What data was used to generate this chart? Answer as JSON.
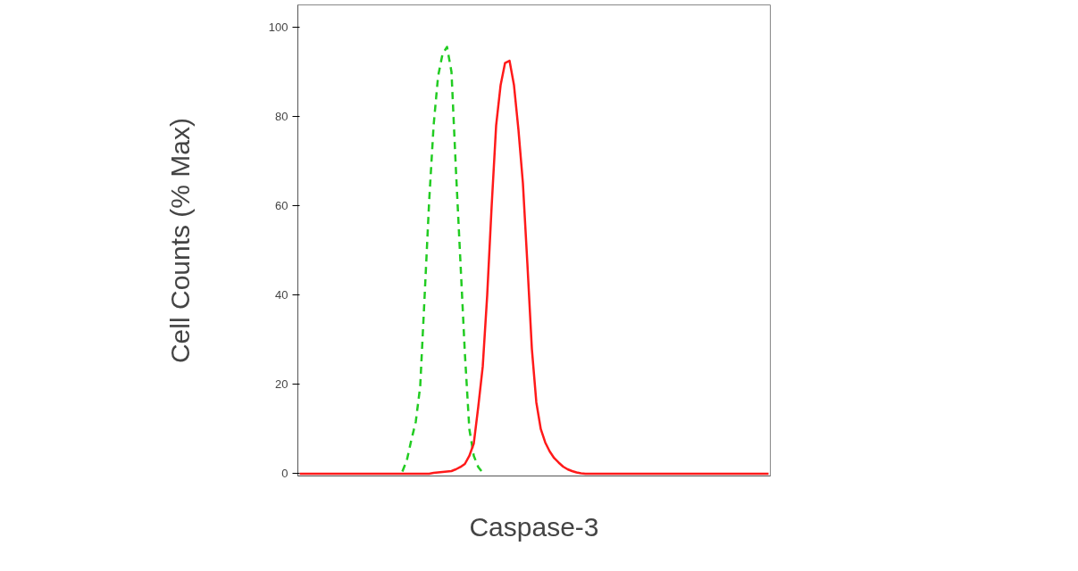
{
  "chart_data": {
    "type": "line",
    "xlabel": "Caspase-3",
    "ylabel": "Cell Counts (% Max)",
    "categories": [
      null,
      null,
      null,
      null,
      null,
      null,
      null,
      null,
      null,
      null,
      null,
      null,
      null,
      null,
      null,
      null,
      null,
      null,
      null,
      null,
      null,
      null,
      null,
      null,
      null,
      null,
      null,
      null,
      null,
      null,
      null,
      null,
      null,
      null,
      null,
      null,
      null,
      null,
      null,
      null,
      null,
      null,
      null,
      null,
      null,
      null,
      null,
      null,
      null,
      null,
      null,
      null,
      null,
      null,
      null,
      null,
      null,
      null,
      null,
      null,
      null,
      null,
      null,
      null,
      null,
      null,
      null,
      null,
      null,
      null,
      null,
      null,
      null,
      null,
      null,
      null,
      null,
      null,
      null,
      null,
      null,
      null,
      null,
      null,
      null,
      null,
      null,
      null,
      null,
      null,
      null,
      null,
      null,
      null,
      null,
      null,
      null,
      null,
      null,
      null,
      null,
      null,
      null,
      null,
      null,
      null
    ],
    "ylim": [
      -0.5,
      105
    ],
    "yticks": [
      0,
      20,
      40,
      60,
      80,
      100
    ],
    "series": [
      {
        "color": "#22cc22",
        "line_style": "dashed",
        "values": [
          null,
          null,
          null,
          null,
          null,
          null,
          null,
          null,
          null,
          null,
          null,
          null,
          null,
          null,
          null,
          null,
          null,
          null,
          null,
          null,
          null,
          null,
          null,
          0.5,
          3,
          7.5,
          11.6,
          19.6,
          40,
          61,
          78,
          89,
          94,
          95.6,
          90,
          68,
          47.6,
          27,
          10,
          4,
          1.5,
          0.2,
          null,
          null,
          null,
          null,
          null,
          null,
          null,
          null,
          null,
          null,
          null,
          null,
          null,
          null,
          null,
          null,
          null,
          null,
          null,
          null,
          null,
          null,
          null,
          null,
          null,
          null,
          null,
          null,
          null,
          null,
          null,
          null,
          null,
          null,
          null,
          null,
          null,
          null,
          null,
          null,
          null,
          null,
          null,
          null,
          null,
          null,
          null,
          null,
          null,
          null,
          null,
          null,
          null,
          null,
          null,
          null,
          null,
          null,
          null,
          null,
          null,
          null,
          null,
          null
        ]
      },
      {
        "color": "#ff1a1a",
        "line_style": "solid",
        "values": [
          0,
          0,
          0,
          0,
          0,
          0,
          0,
          0,
          0,
          0,
          0,
          0,
          0,
          0,
          0,
          0,
          0,
          0,
          0,
          0,
          0,
          0,
          0,
          0,
          0,
          0,
          0,
          0,
          0,
          0,
          0.2,
          0.3,
          0.4,
          0.5,
          0.6,
          1,
          1.5,
          2.2,
          4,
          6.8,
          15,
          24,
          40,
          60,
          78,
          87,
          92,
          92.5,
          87,
          77,
          65,
          47,
          28,
          16,
          10,
          7,
          5,
          3.5,
          2.5,
          1.6,
          1,
          0.6,
          0.3,
          0.1,
          0,
          0,
          0,
          0,
          0,
          0,
          0,
          0,
          0,
          0,
          0,
          0,
          0,
          0,
          0,
          0,
          0,
          0,
          0,
          0,
          0,
          0,
          0,
          0,
          0,
          0,
          0,
          0,
          0,
          0,
          0,
          0,
          0,
          0,
          0,
          0,
          0,
          0,
          0,
          0,
          0,
          0
        ]
      }
    ]
  }
}
